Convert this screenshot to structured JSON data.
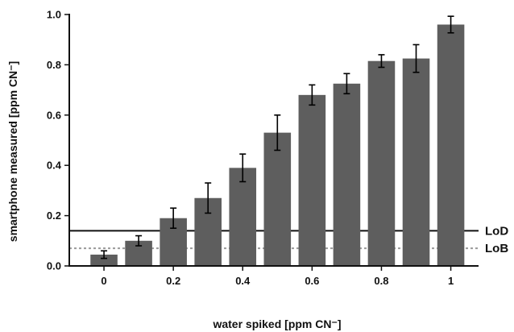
{
  "chart_data": {
    "type": "bar",
    "title": "",
    "xlabel": "water spiked [ppm CN⁻]",
    "ylabel": "smartphone measured [ppm CN⁻]",
    "x": [
      0,
      0.1,
      0.2,
      0.3,
      0.4,
      0.5,
      0.6,
      0.7,
      0.8,
      0.9,
      1.0
    ],
    "values": [
      0.045,
      0.1,
      0.19,
      0.27,
      0.39,
      0.53,
      0.68,
      0.725,
      0.815,
      0.825,
      0.96
    ],
    "errors": [
      0.015,
      0.02,
      0.04,
      0.06,
      0.055,
      0.07,
      0.04,
      0.04,
      0.025,
      0.055,
      0.033
    ],
    "xlim": [
      -0.1,
      1.08
    ],
    "ylim": [
      0,
      1.0
    ],
    "xticks": [
      0,
      0.2,
      0.4,
      0.6,
      0.8,
      1
    ],
    "xtick_labels": [
      "0",
      "0.2",
      "0.4",
      "0.6",
      "0.8",
      "1"
    ],
    "yticks": [
      0,
      0.2,
      0.4,
      0.6,
      0.8,
      1.0
    ],
    "ytick_labels": [
      "0.0",
      "0.2",
      "0.4",
      "0.6",
      "0.8",
      "1.0"
    ],
    "reference_lines": [
      {
        "label": "LoD",
        "value": 0.14,
        "style": "solid"
      },
      {
        "label": "LoB",
        "value": 0.07,
        "style": "dotted"
      }
    ],
    "grid": false,
    "colors": {
      "bar": "#5e5e5e",
      "axis": "#111111",
      "lod": "#111111",
      "lob": "#9a9a9a"
    }
  }
}
